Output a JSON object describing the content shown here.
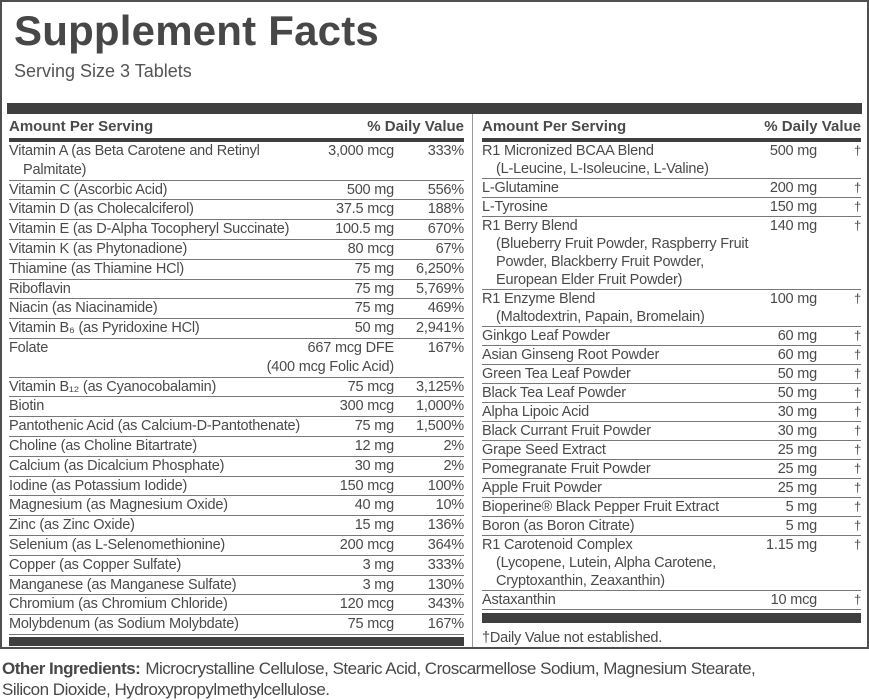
{
  "title": "Supplement Facts",
  "serving_size": "Serving Size 3 Tablets",
  "columns": {
    "left": {
      "header": {
        "amount": "Amount Per Serving",
        "daily_value": "% Daily Value"
      },
      "rows": [
        {
          "name": "Vitamin A (as Beta Carotene and Retinyl",
          "sub": "Palmitate)",
          "amount": "3,000 mcg",
          "dv": "333%"
        },
        {
          "name": "Vitamin C (Ascorbic Acid)",
          "amount": "500 mg",
          "dv": "556%"
        },
        {
          "name": "Vitamin D (as Cholecalciferol)",
          "amount": "37.5 mcg",
          "dv": "188%"
        },
        {
          "name": "Vitamin E (as D-Alpha Tocopheryl Succinate)",
          "amount": "100.5 mg",
          "dv": "670%"
        },
        {
          "name": "Vitamin K (as Phytonadione)",
          "amount": "80 mcg",
          "dv": "67%"
        },
        {
          "name": "Thiamine (as Thiamine HCl)",
          "amount": "75 mg",
          "dv": "6,250%"
        },
        {
          "name": "Riboflavin",
          "amount": "75 mg",
          "dv": "5,769%"
        },
        {
          "name": "Niacin (as Niacinamide)",
          "amount": "75 mg",
          "dv": "469%"
        },
        {
          "name": "Vitamin B₆ (as Pyridoxine HCl)",
          "amount": "50 mg",
          "dv": "2,941%"
        },
        {
          "name": "Folate",
          "amount": "667 mcg DFE",
          "amount_sub": "(400 mcg Folic Acid)",
          "dv": "167%"
        },
        {
          "name": "Vitamin B₁₂ (as Cyanocobalamin)",
          "amount": "75 mcg",
          "dv": "3,125%"
        },
        {
          "name": "Biotin",
          "amount": "300 mcg",
          "dv": "1,000%"
        },
        {
          "name": "Pantothenic Acid (as Calcium-D-Pantothenate)",
          "amount": "75 mg",
          "dv": "1,500%"
        },
        {
          "name": "Choline (as Choline Bitartrate)",
          "amount": "12 mg",
          "dv": "2%"
        },
        {
          "name": "Calcium (as Dicalcium Phosphate)",
          "amount": "30 mg",
          "dv": "2%"
        },
        {
          "name": "Iodine (as Potassium Iodide)",
          "amount": "150 mcg",
          "dv": "100%"
        },
        {
          "name": "Magnesium (as Magnesium Oxide)",
          "amount": "40 mg",
          "dv": "10%"
        },
        {
          "name": "Zinc (as Zinc Oxide)",
          "amount": "15 mg",
          "dv": "136%"
        },
        {
          "name": "Selenium (as L-Selenomethionine)",
          "amount": "200 mcg",
          "dv": "364%"
        },
        {
          "name": "Copper (as Copper Sulfate)",
          "amount": "3 mg",
          "dv": "333%"
        },
        {
          "name": "Manganese (as Manganese Sulfate)",
          "amount": "3 mg",
          "dv": "130%"
        },
        {
          "name": "Chromium (as Chromium Chloride)",
          "amount": "120 mcg",
          "dv": "343%"
        },
        {
          "name": "Molybdenum (as Sodium Molybdate)",
          "amount": "75 mcg",
          "dv": "167%"
        }
      ]
    },
    "right": {
      "header": {
        "amount": "Amount Per Serving",
        "daily_value": "% Daily Value"
      },
      "rows": [
        {
          "name": "R1 Micronized BCAA Blend",
          "sub": "(L-Leucine, L-Isoleucine, L-Valine)",
          "amount": "500 mg",
          "dv": "†"
        },
        {
          "name": "L-Glutamine",
          "amount": "200 mg",
          "dv": "†"
        },
        {
          "name": "L-Tyrosine",
          "amount": "150 mg",
          "dv": "†"
        },
        {
          "name": "R1 Berry Blend",
          "sub": "(Blueberry Fruit Powder, Raspberry Fruit Powder, Blackberry Fruit Powder, European Elder Fruit Powder)",
          "amount": "140 mg",
          "dv": "†"
        },
        {
          "name": "R1 Enzyme Blend",
          "sub": "(Maltodextrin, Papain, Bromelain)",
          "amount": "100 mg",
          "dv": "†"
        },
        {
          "name": "Ginkgo Leaf Powder",
          "amount": "60 mg",
          "dv": "†"
        },
        {
          "name": "Asian Ginseng Root Powder",
          "amount": "60 mg",
          "dv": "†"
        },
        {
          "name": "Green Tea Leaf Powder",
          "amount": "50 mg",
          "dv": "†"
        },
        {
          "name": "Black Tea Leaf Powder",
          "amount": "50 mg",
          "dv": "†"
        },
        {
          "name": "Alpha Lipoic Acid",
          "amount": "30 mg",
          "dv": "†"
        },
        {
          "name": "Black Currant Fruit Powder",
          "amount": "30 mg",
          "dv": "†"
        },
        {
          "name": "Grape Seed Extract",
          "amount": "25 mg",
          "dv": "†"
        },
        {
          "name": "Pomegranate Fruit Powder",
          "amount": "25 mg",
          "dv": "†"
        },
        {
          "name": "Apple Fruit Powder",
          "amount": "25 mg",
          "dv": "†"
        },
        {
          "name": "Bioperine® Black Pepper Fruit Extract",
          "amount": "5 mg",
          "dv": "†"
        },
        {
          "name": "Boron (as Boron Citrate)",
          "amount": "5 mg",
          "dv": "†"
        },
        {
          "name": "R1 Carotenoid Complex",
          "sub": "(Lycopene, Lutein, Alpha Carotene, Cryptoxanthin, Zeaxanthin)",
          "amount": "1.15 mg",
          "dv": "†"
        },
        {
          "name": "Astaxanthin",
          "amount": "10 mcg",
          "dv": "†"
        }
      ]
    }
  },
  "footnote": "†Daily Value not established.",
  "other_ingredients": {
    "label": "Other Ingredients:",
    "line1": "Microcrystalline Cellulose, Stearic Acid, Croscarmellose Sodium, Magnesium Stearate,",
    "line2": "Silicon Dioxide, Hydroxypropylmethylcellulose."
  },
  "colors": {
    "text": "#4a4a4a",
    "bar": "#3f3f3f",
    "separator": "#787878",
    "border": "#4f4f4f",
    "divider": "#9a9a9a"
  }
}
